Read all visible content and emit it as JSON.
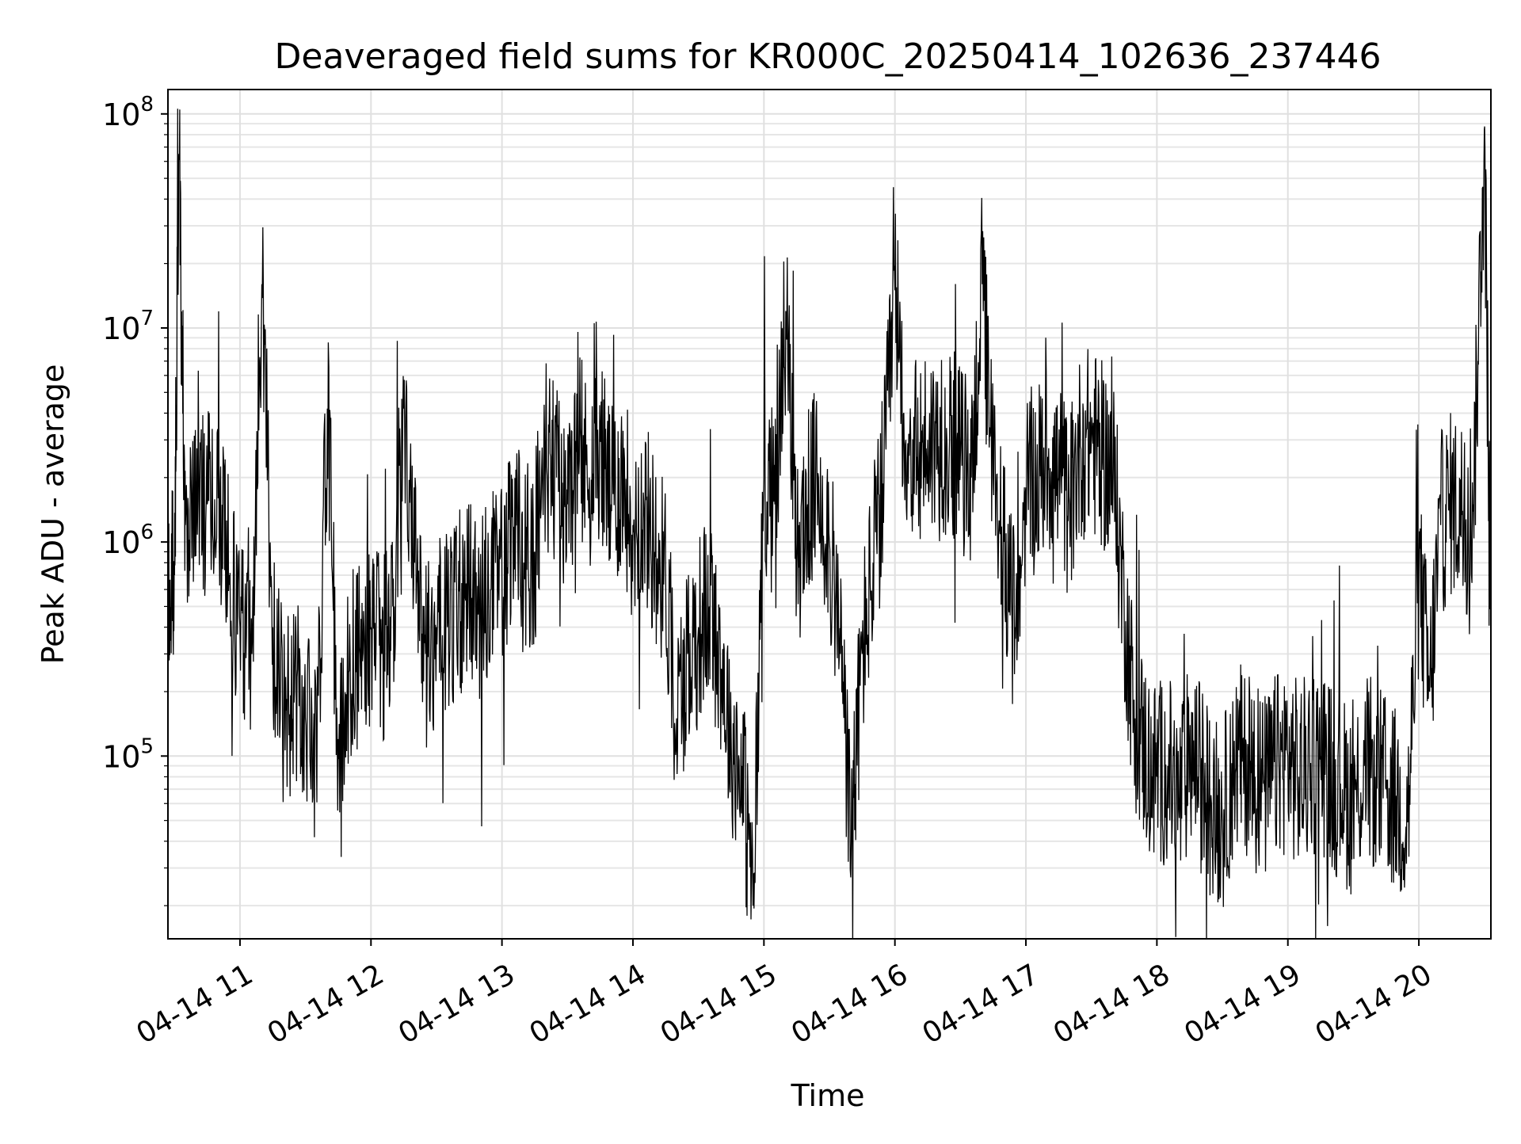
{
  "chart_data": {
    "type": "line",
    "title": "Deaveraged field sums for KR000C_20250414_102636_237446",
    "xlabel": "Time",
    "ylabel": "Peak ADU - average",
    "x_ticks": [
      "04-14 11",
      "04-14 12",
      "04-14 13",
      "04-14 14",
      "04-14 15",
      "04-14 16",
      "04-14 17",
      "04-14 18",
      "04-14 19",
      "04-14 20"
    ],
    "x_tick_values": [
      "2025-04-14T11:00",
      "2025-04-14T12:00",
      "2025-04-14T13:00",
      "2025-04-14T14:00",
      "2025-04-14T15:00",
      "2025-04-14T16:00",
      "2025-04-14T17:00",
      "2025-04-14T18:00",
      "2025-04-14T19:00",
      "2025-04-14T20:00"
    ],
    "xlim": [
      "2025-04-14T10:27",
      "2025-04-14T20:33"
    ],
    "yscale": "log",
    "y_ticks": [
      {
        "base": "10",
        "exp": "5",
        "value": 100000
      },
      {
        "base": "10",
        "exp": "6",
        "value": 1000000
      },
      {
        "base": "10",
        "exp": "7",
        "value": 10000000
      },
      {
        "base": "10",
        "exp": "8",
        "value": 100000000
      }
    ],
    "ylim": [
      14000,
      130000000
    ],
    "grid": true,
    "minor_grid": true,
    "series": [
      {
        "color": "#000000",
        "x": [
          "2025-04-14T10:27",
          "2025-04-14T10:30",
          "2025-04-14T10:32",
          "2025-04-14T10:35",
          "2025-04-14T10:40",
          "2025-04-14T10:45",
          "2025-04-14T10:50",
          "2025-04-14T10:55",
          "2025-04-14T11:00",
          "2025-04-14T11:05",
          "2025-04-14T11:10",
          "2025-04-14T11:15",
          "2025-04-14T11:20",
          "2025-04-14T11:25",
          "2025-04-14T11:30",
          "2025-04-14T11:35",
          "2025-04-14T11:40",
          "2025-04-14T11:45",
          "2025-04-14T11:50",
          "2025-04-14T11:55",
          "2025-04-14T12:00",
          "2025-04-14T12:05",
          "2025-04-14T12:10",
          "2025-04-14T12:15",
          "2025-04-14T12:20",
          "2025-04-14T12:25",
          "2025-04-14T12:30",
          "2025-04-14T12:35",
          "2025-04-14T12:40",
          "2025-04-14T12:45",
          "2025-04-14T12:50",
          "2025-04-14T12:55",
          "2025-04-14T13:00",
          "2025-04-14T13:05",
          "2025-04-14T13:10",
          "2025-04-14T13:15",
          "2025-04-14T13:20",
          "2025-04-14T13:25",
          "2025-04-14T13:30",
          "2025-04-14T13:35",
          "2025-04-14T13:40",
          "2025-04-14T13:45",
          "2025-04-14T13:50",
          "2025-04-14T13:55",
          "2025-04-14T14:00",
          "2025-04-14T14:05",
          "2025-04-14T14:10",
          "2025-04-14T14:15",
          "2025-04-14T14:20",
          "2025-04-14T14:25",
          "2025-04-14T14:30",
          "2025-04-14T14:35",
          "2025-04-14T14:40",
          "2025-04-14T14:45",
          "2025-04-14T14:50",
          "2025-04-14T14:55",
          "2025-04-14T15:00",
          "2025-04-14T15:05",
          "2025-04-14T15:10",
          "2025-04-14T15:15",
          "2025-04-14T15:20",
          "2025-04-14T15:25",
          "2025-04-14T15:30",
          "2025-04-14T15:35",
          "2025-04-14T15:40",
          "2025-04-14T15:45",
          "2025-04-14T15:50",
          "2025-04-14T15:55",
          "2025-04-14T16:00",
          "2025-04-14T16:05",
          "2025-04-14T16:10",
          "2025-04-14T16:15",
          "2025-04-14T16:20",
          "2025-04-14T16:25",
          "2025-04-14T16:30",
          "2025-04-14T16:35",
          "2025-04-14T16:40",
          "2025-04-14T16:45",
          "2025-04-14T16:50",
          "2025-04-14T16:55",
          "2025-04-14T17:00",
          "2025-04-14T17:05",
          "2025-04-14T17:10",
          "2025-04-14T17:15",
          "2025-04-14T17:20",
          "2025-04-14T17:25",
          "2025-04-14T17:30",
          "2025-04-14T17:35",
          "2025-04-14T17:40",
          "2025-04-14T17:45",
          "2025-04-14T17:50",
          "2025-04-14T17:55",
          "2025-04-14T18:00",
          "2025-04-14T18:05",
          "2025-04-14T18:10",
          "2025-04-14T18:15",
          "2025-04-14T18:20",
          "2025-04-14T18:25",
          "2025-04-14T18:30",
          "2025-04-14T18:35",
          "2025-04-14T18:40",
          "2025-04-14T18:45",
          "2025-04-14T18:50",
          "2025-04-14T18:55",
          "2025-04-14T19:00",
          "2025-04-14T19:05",
          "2025-04-14T19:10",
          "2025-04-14T19:15",
          "2025-04-14T19:20",
          "2025-04-14T19:25",
          "2025-04-14T19:30",
          "2025-04-14T19:35",
          "2025-04-14T19:40",
          "2025-04-14T19:45",
          "2025-04-14T19:50",
          "2025-04-14T19:55",
          "2025-04-14T20:00",
          "2025-04-14T20:05",
          "2025-04-14T20:10",
          "2025-04-14T20:15",
          "2025-04-14T20:20",
          "2025-04-14T20:25",
          "2025-04-14T20:30",
          "2025-04-14T20:33"
        ],
        "y": [
          600000,
          700000,
          65000000,
          1200000,
          1300000,
          1500000,
          1600000,
          700000,
          400000,
          300000,
          16000000,
          400000,
          150000,
          200000,
          150000,
          100000,
          4200000,
          120000,
          250000,
          300000,
          400000,
          300000,
          500000,
          4200000,
          800000,
          300000,
          400000,
          400000,
          500000,
          600000,
          500000,
          600000,
          700000,
          1200000,
          800000,
          900000,
          2500000,
          2000000,
          1500000,
          2500000,
          2000000,
          3000000,
          1500000,
          2000000,
          1200000,
          1500000,
          900000,
          700000,
          150000,
          300000,
          400000,
          500000,
          300000,
          120000,
          90000,
          20000,
          2000000,
          1500000,
          12000000,
          800000,
          1500000,
          2000000,
          1000000,
          300000,
          40000,
          300000,
          800000,
          2000000,
          15000000,
          3000000,
          2500000,
          3000000,
          2800000,
          3000000,
          2500000,
          2000000,
          16000000,
          2000000,
          1000000,
          400000,
          1800000,
          2000000,
          2500000,
          2000000,
          1500000,
          2800000,
          3000000,
          2500000,
          2200000,
          500000,
          150000,
          100000,
          80000,
          90000,
          60000,
          100000,
          80000,
          60000,
          50000,
          90000,
          100000,
          80000,
          70000,
          90000,
          100000,
          80000,
          90000,
          100000,
          80000,
          70000,
          60000,
          90000,
          80000,
          70000,
          60000,
          50000,
          700000,
          200000,
          1200000,
          1500000,
          1400000,
          1500000,
          85000000,
          400000
        ]
      }
    ]
  }
}
